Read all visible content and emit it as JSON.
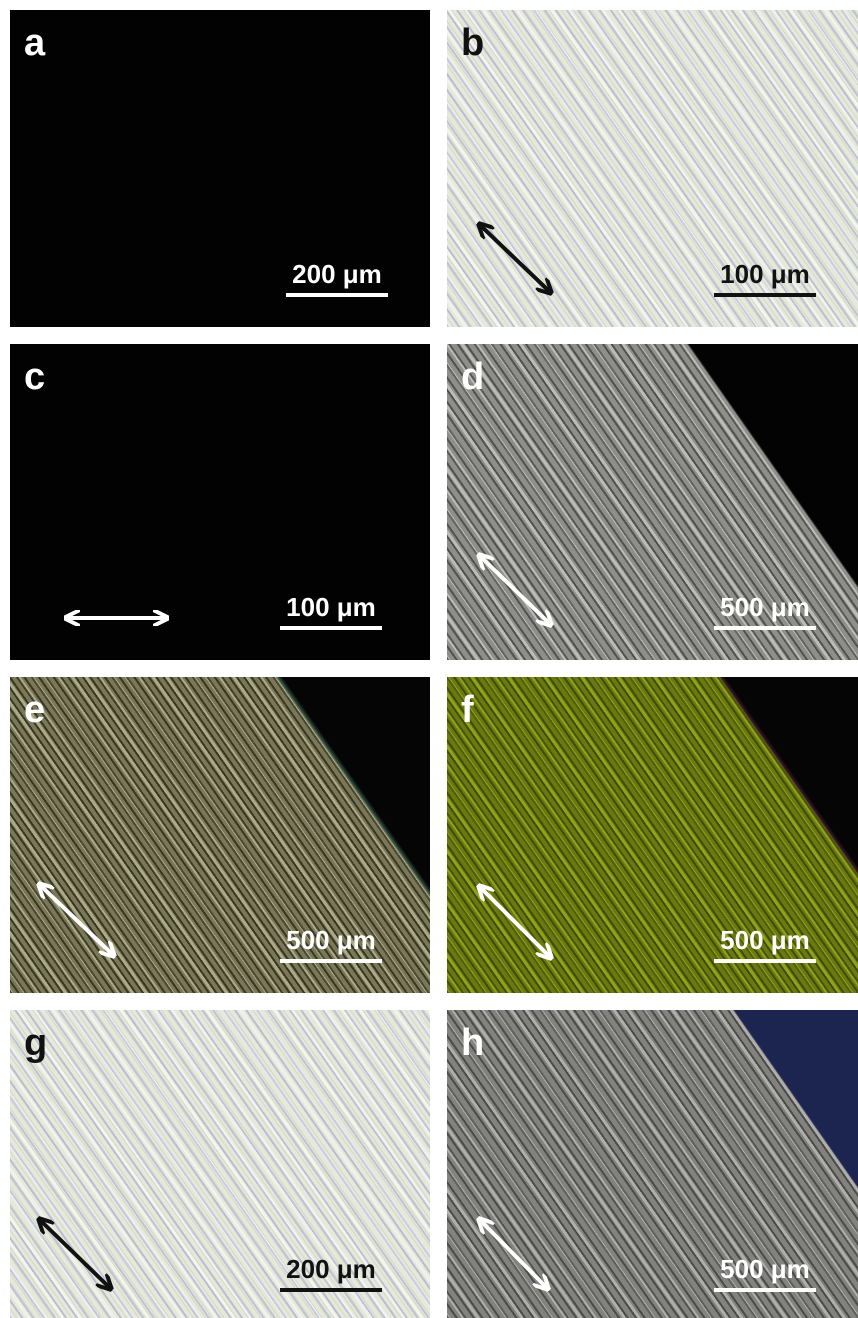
{
  "panels": [
    {
      "label": "a",
      "scale_bar": "200 μm"
    },
    {
      "label": "b",
      "scale_bar": "100 μm"
    },
    {
      "label": "c",
      "scale_bar": "100 μm"
    },
    {
      "label": "d",
      "scale_bar": "500 μm"
    },
    {
      "label": "e",
      "scale_bar": "500 μm"
    },
    {
      "label": "f",
      "scale_bar": "500 μm"
    },
    {
      "label": "g",
      "scale_bar": "200 μm"
    },
    {
      "label": "h",
      "scale_bar": "500 μm"
    }
  ]
}
